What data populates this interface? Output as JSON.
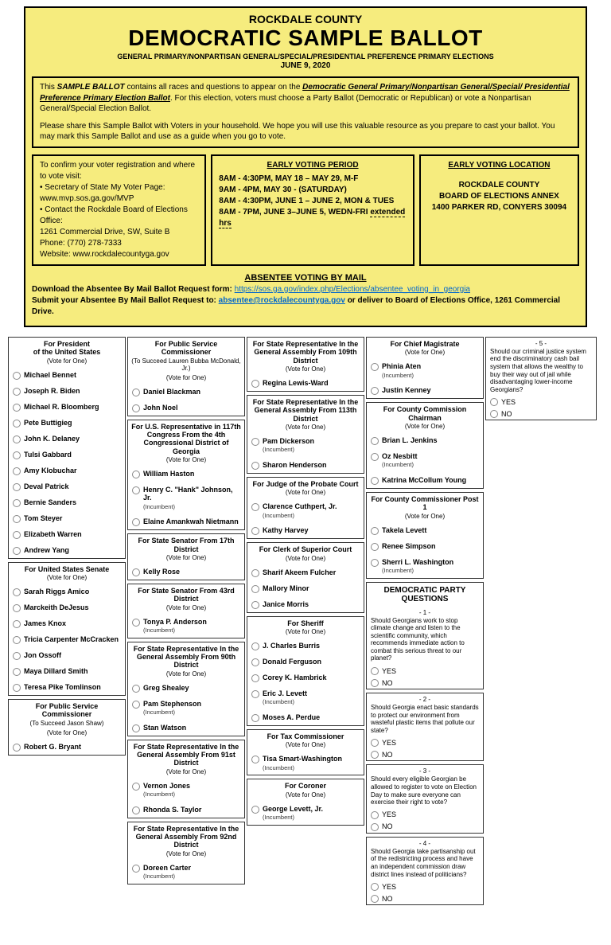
{
  "header": {
    "county": "ROCKDALE COUNTY",
    "title": "DEMOCRATIC SAMPLE BALLOT",
    "subtitle": "GENERAL PRIMARY/NONPARTISAN GENERAL/SPECIAL/PRESIDENTIAL PREFERENCE PRIMARY ELECTIONS",
    "date": "JUNE 9, 2020"
  },
  "intro": {
    "p1a": "This ",
    "p1b": "SAMPLE BALLOT",
    "p1c": " contains all races and questions to appear on the ",
    "p1d": "Democratic General Primary/Nonpartisan General/Special/ Presidential Preference Primary Election Ballot",
    "p1e": ". For this election, voters must choose a Party Ballot (Democratic or Republican) or vote a Nonpartisan General/Special Election Ballot.",
    "p2": "Please share this Sample Ballot with Voters in your household. We hope you will use this valuable resource as you prepare to cast your ballot. You may mark this Sample Ballot and use as a guide when you go to vote."
  },
  "info_left": {
    "l1": "To confirm your voter registration and where to vote visit:",
    "l2": "• Secretary of State My Voter Page:",
    "l3": "www.mvp.sos.ga.gov/MVP",
    "l4": "• Contact the Rockdale Board of Elections Office:",
    "l5": "1261 Commercial Drive, SW, Suite B",
    "l6": "Phone: (770) 278-7333",
    "l7": "Website: www.rockdalecountyga.gov"
  },
  "info_mid": {
    "head": "EARLY VOTING PERIOD",
    "l1": "8AM - 4:30PM, MAY 18 – MAY 29, M-F",
    "l2": "9AM - 4PM, MAY 30 - (SATURDAY)",
    "l3": "8AM - 4:30PM, JUNE 1 – JUNE 2, MON & TUES",
    "l4a": "8AM - 7PM, JUNE 3–JUNE 5, WEDN-FRI ",
    "l4b": "extended hrs"
  },
  "info_right": {
    "head": "EARLY VOTING LOCATION",
    "l1": "ROCKDALE COUNTY",
    "l2": "BOARD OF ELECTIONS ANNEX",
    "l3": "1400 PARKER RD, CONYERS 30094"
  },
  "absentee": {
    "head": "ABSENTEE VOTING BY MAIL",
    "l1a": "Download the Absentee By Mail Ballot Request form: ",
    "l1b": "https://sos.ga.gov/index.php/Elections/absentee_voting_in_georgia",
    "l2a": "Submit your Absentee By Mail Ballot Request to: ",
    "l2b": "absentee@rockdalecountyga.gov",
    "l2c": " or deliver to Board of Elections Office, 1261 Commercial Drive."
  },
  "labels": {
    "vote_one": "(Vote for One)",
    "incumbent": "(Incumbent)",
    "yes": "YES",
    "no": "NO"
  },
  "races": {
    "president": {
      "title": "For President\nof the United States",
      "cands": [
        "Michael Bennet",
        "Joseph R. Biden",
        "Michael R. Bloomberg",
        "Pete Buttigieg",
        "John K. Delaney",
        "Tulsi Gabbard",
        "Amy Klobuchar",
        "Deval Patrick",
        "Bernie Sanders",
        "Tom Steyer",
        "Elizabeth Warren",
        "Andrew Yang"
      ]
    },
    "senate": {
      "title": "For United States Senate",
      "cands": [
        "Sarah Riggs Amico",
        "Marckeith DeJesus",
        "James Knox",
        "Tricia Carpenter McCracken",
        "Jon Ossoff",
        "Maya Dillard Smith",
        "Teresa Pike Tomlinson"
      ]
    },
    "psc1": {
      "title": "For Public Service Commissioner",
      "sub": "(To Succeed Jason Shaw)",
      "cands": [
        "Robert G. Bryant"
      ]
    },
    "psc2": {
      "title": "For Public Service Commissioner",
      "sub": "(To Succeed Lauren Bubba McDonald, Jr.)",
      "cands": [
        "Daniel Blackman",
        "John Noel"
      ]
    },
    "usrep": {
      "title": "For U.S. Representative in 117th Congress From the 4th Congressional District of Georgia",
      "cands": [
        {
          "n": "William Haston"
        },
        {
          "n": "Henry C. \"Hank\" Johnson, Jr.",
          "i": true
        },
        {
          "n": "Elaine Amankwah Nietmann"
        }
      ]
    },
    "sen17": {
      "title": "For State Senator From 17th District",
      "cands": [
        "Kelly Rose"
      ]
    },
    "sen43": {
      "title": "For State Senator From 43rd District",
      "cands": [
        {
          "n": "Tonya P. Anderson",
          "i": true
        }
      ]
    },
    "rep90": {
      "title": "For State Representative In the General Assembly From 90th District",
      "cands": [
        {
          "n": "Greg Shealey"
        },
        {
          "n": "Pam Stephenson",
          "i": true
        },
        {
          "n": "Stan Watson"
        }
      ]
    },
    "rep91": {
      "title": "For State Representative In the General Assembly From 91st District",
      "cands": [
        {
          "n": "Vernon Jones",
          "i": true
        },
        {
          "n": "Rhonda S. Taylor"
        }
      ]
    },
    "rep92": {
      "title": "For State Representative In the General Assembly From 92nd District",
      "cands": [
        {
          "n": "Doreen Carter",
          "i": true
        }
      ]
    },
    "rep109": {
      "title": "For State Representative In the General Assembly From 109th District",
      "cands": [
        "Regina Lewis-Ward"
      ]
    },
    "rep113": {
      "title": "For State Representative In the General Assembly From 113th District",
      "cands": [
        {
          "n": "Pam Dickerson",
          "i": true
        },
        {
          "n": "Sharon Henderson"
        }
      ]
    },
    "probate": {
      "title": "For Judge of the Probate Court",
      "cands": [
        {
          "n": "Clarence Cuthpert, Jr.",
          "i": true
        },
        {
          "n": "Kathy Harvey"
        }
      ]
    },
    "clerk": {
      "title": "For Clerk of Superior Court",
      "cands": [
        "Sharif Akeem Fulcher",
        "Mallory Minor",
        "Janice Morris"
      ]
    },
    "sheriff": {
      "title": "For Sheriff",
      "cands": [
        {
          "n": "J. Charles Burris"
        },
        {
          "n": "Donald Ferguson"
        },
        {
          "n": "Corey K. Hambrick"
        },
        {
          "n": "Eric J. Levett",
          "i": true
        },
        {
          "n": "Moses A. Perdue"
        }
      ]
    },
    "tax": {
      "title": "For Tax Commissioner",
      "cands": [
        {
          "n": "Tisa Smart-Washington",
          "i": true
        }
      ]
    },
    "coroner": {
      "title": "For Coroner",
      "cands": [
        {
          "n": "George Levett, Jr.",
          "i": true
        }
      ]
    },
    "magistrate": {
      "title": "For Chief Magistrate",
      "cands": [
        {
          "n": "Phinia Aten",
          "i": true
        },
        {
          "n": "Justin Kenney"
        }
      ]
    },
    "ccchair": {
      "title": "For County Commission Chairman",
      "cands": [
        {
          "n": "Brian L. Jenkins"
        },
        {
          "n": "Oz Nesbitt",
          "i": true
        },
        {
          "n": "Katrina McCollum Young"
        }
      ]
    },
    "ccpost1": {
      "title": "For County Commissioner Post 1",
      "cands": [
        {
          "n": "Takela Levett"
        },
        {
          "n": "Renee Simpson"
        },
        {
          "n": "Sherri L. Washington",
          "i": true
        }
      ]
    }
  },
  "questions": {
    "head": "DEMOCRATIC PARTY QUESTIONS",
    "q1": {
      "num": "- 1 -",
      "text": "Should Georgians work to stop climate change and listen to the scientific community, which recommends immediate action to combat this serious threat to our planet?"
    },
    "q2": {
      "num": "- 2 -",
      "text": "Should Georgia enact basic standards to protect our environment from wasteful plastic items that pollute our state?"
    },
    "q3": {
      "num": "- 3 -",
      "text": "Should every eligible Georgian be allowed to register to vote on Election Day to make sure everyone can exercise their right to vote?"
    },
    "q4": {
      "num": "- 4 -",
      "text": "Should Georgia take partisanship out of the redistricting process and have an independent commission draw district lines instead of politicians?"
    },
    "q5": {
      "num": "- 5 -",
      "text": "Should our criminal justice system end the discriminatory cash bail system that allows the wealthy to buy their way out of jail while disadvantaging lower-income Georgians?"
    }
  }
}
